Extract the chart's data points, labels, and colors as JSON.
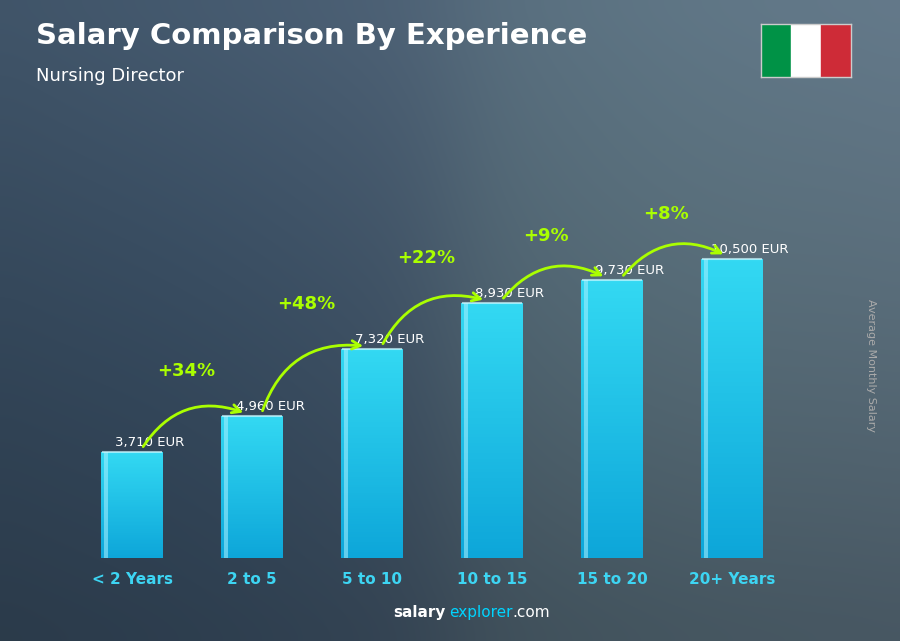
{
  "title": "Salary Comparison By Experience",
  "subtitle": "Nursing Director",
  "categories": [
    "< 2 Years",
    "2 to 5",
    "5 to 10",
    "10 to 15",
    "15 to 20",
    "20+ Years"
  ],
  "values": [
    3710,
    4960,
    7320,
    8930,
    9730,
    10500
  ],
  "labels": [
    "3,710 EUR",
    "4,960 EUR",
    "7,320 EUR",
    "8,930 EUR",
    "9,730 EUR",
    "10,500 EUR"
  ],
  "pct_changes": [
    "+34%",
    "+48%",
    "+22%",
    "+9%",
    "+8%"
  ],
  "bar_color_light": "#3dd5f3",
  "bar_color_mid": "#17a2c8",
  "bar_color_dark": "#0d7fa0",
  "bar_highlight": "#90eeff",
  "title_color": "#ffffff",
  "subtitle_color": "#ffffff",
  "label_color": "#ffffff",
  "pct_color": "#aaff00",
  "xlabel_color": "#3dd5f3",
  "ylabel_text": "Average Monthly Salary",
  "ylabel_color": "#aaaaaa",
  "footer_salary_color": "#ffffff",
  "footer_explorer_color": "#00d4ff",
  "footer_com_color": "#ffffff",
  "ylim": [
    0,
    13500
  ],
  "bar_width": 0.52,
  "bg_colors": [
    "#2c5a7a",
    "#1a3d57",
    "#0f2535"
  ],
  "photo_overlay_alpha": 0.55
}
